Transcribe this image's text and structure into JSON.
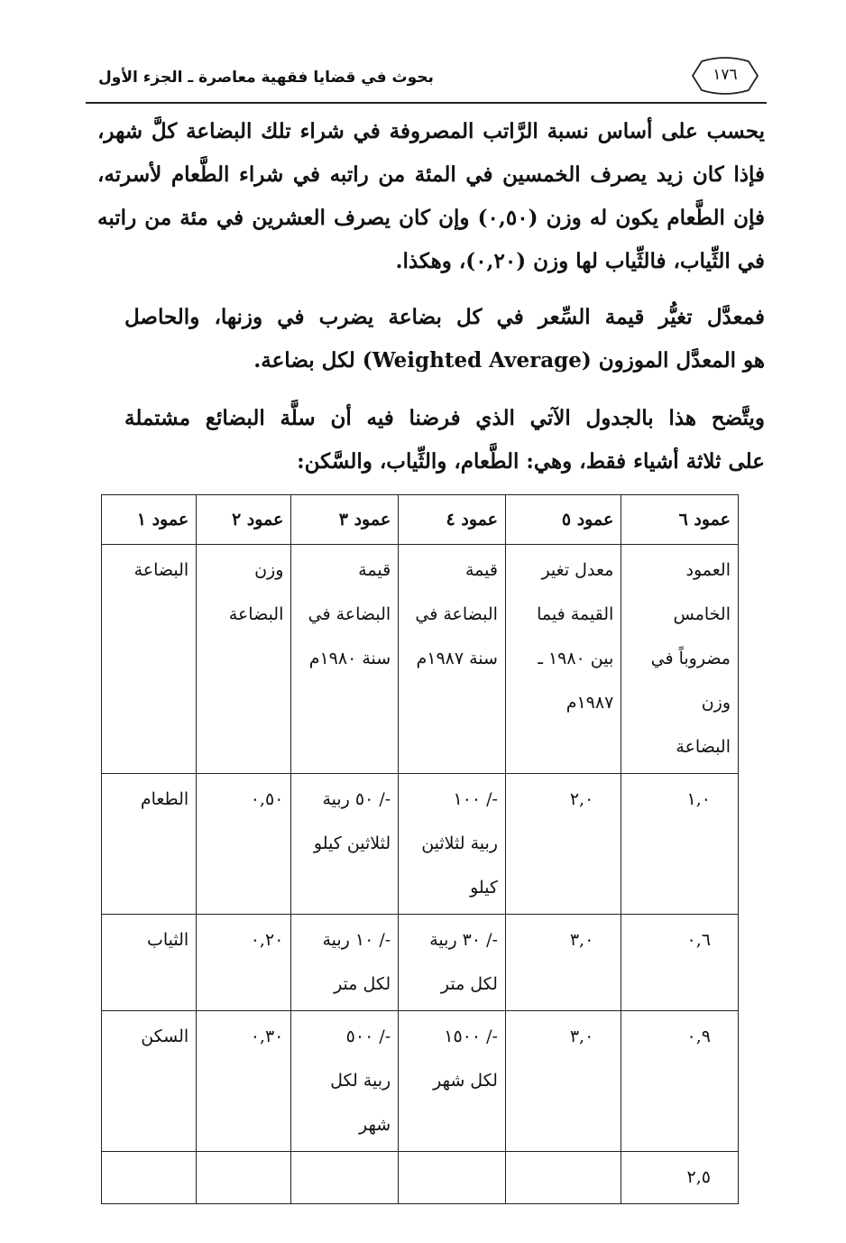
{
  "header": {
    "running_title": "بحوث في قضايا فقهية معاصرة ـ الجزء الأول",
    "page_number": "١٧٦"
  },
  "body": {
    "p1": [
      "يحسب على أساس نسبة الرَّاتب المصروفة في شراء تلك البضاعة كلَّ شهر،",
      "فإذا كان زيد يصرف الخمسين في المئة من راتبه في شراء الطَّعام لأسرته،",
      "فإن الطَّعام يكون له وزن (٠,٥٠) وإن كان يصرف العشرين في مئة من راتبه",
      "في الثِّياب، فالثِّياب لها وزن (٠,٢٠)، وهكذا."
    ],
    "p2": [
      "فمعدَّل تغيُّر قيمة السِّعر في كل بضاعة يضرب في وزنها، والحاصل",
      "هو المعدَّل الموزون (Weighted Average) لكل بضاعة."
    ],
    "p3": [
      "ويتَّضح هذا بالجدول الآتي الذي فرضنا فيه أن سلَّة البضائع مشتملة",
      "على ثلاثة أشياء فقط، وهي: الطَّعام، والثِّياب، والسَّكن:"
    ]
  },
  "table": {
    "headers": [
      "عمود ٦",
      "عمود ٥",
      "عمود ٤",
      "عمود ٣",
      "عمود ٢",
      "عمود ١"
    ],
    "rows": [
      [
        [
          "العمود",
          "الخامس",
          "مضروباً في",
          "وزن",
          "البضاعة"
        ],
        [
          "معدل تغير",
          "القيمة فيما",
          "بين ١٩٨٠ ـ",
          "١٩٨٧م"
        ],
        [
          "قيمة",
          "البضاعة في",
          "سنة ١٩٨٧م"
        ],
        [
          "قيمة",
          "البضاعة في",
          "سنة ١٩٨٠م"
        ],
        [
          "وزن",
          "البضاعة"
        ],
        [
          "البضاعة"
        ]
      ],
      [
        [
          "١,٠"
        ],
        [
          "٢,٠"
        ],
        [
          "-/ ١٠٠",
          "ربية لثلاثين",
          "كيلو"
        ],
        [
          "-/ ٥٠ ربية",
          "لثلاثين كيلو"
        ],
        [
          "٠,٥٠"
        ],
        [
          "الطعام"
        ]
      ],
      [
        [
          "٠,٦"
        ],
        [
          "٣,٠"
        ],
        [
          "-/ ٣٠ ربية",
          "لكل متر"
        ],
        [
          "-/ ١٠ ربية",
          "لكل متر"
        ],
        [
          "٠,٢٠"
        ],
        [
          "الثياب"
        ]
      ],
      [
        [
          "٠,٩"
        ],
        [
          "٣,٠"
        ],
        [
          "-/ ١٥٠٠",
          "لكل شهر"
        ],
        [
          "-/ ٥٠٠",
          "ربية لكل",
          "شهر"
        ],
        [
          "٠,٣٠"
        ],
        [
          "السكن"
        ]
      ],
      [
        [
          "٢,٥"
        ],
        [],
        [],
        [],
        [],
        []
      ]
    ]
  }
}
